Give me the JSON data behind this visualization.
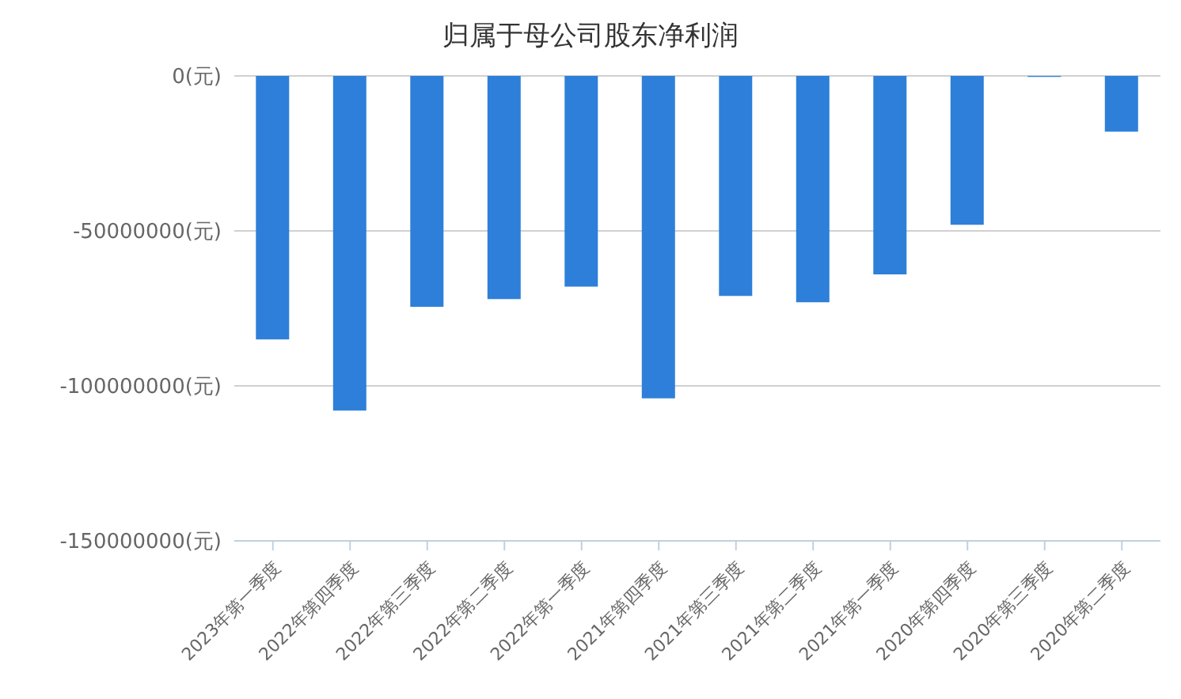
{
  "chart_data": {
    "type": "bar",
    "title": "归属于母公司股东净利润",
    "categories": [
      "2023年第一季度",
      "2022年第四季度",
      "2022年第三季度",
      "2022年第二季度",
      "2022年第一季度",
      "2021年第四季度",
      "2021年第三季度",
      "2021年第二季度",
      "2021年第一季度",
      "2020年第四季度",
      "2020年第三季度",
      "2020年第二季度"
    ],
    "values": [
      -85000000,
      -108000000,
      -74500000,
      -72000000,
      -68000000,
      -104000000,
      -71000000,
      -73000000,
      -64000000,
      -48000000,
      -300000,
      -18000000
    ],
    "color": "#2e7fd9",
    "ylim": [
      -150000000,
      0
    ],
    "yticks": [
      {
        "value": -150000000,
        "label": "-150000000(元)"
      },
      {
        "value": -100000000,
        "label": "-100000000(元)"
      },
      {
        "value": -50000000,
        "label": "-50000000(元)"
      },
      {
        "value": 0,
        "label": "0(元)"
      }
    ],
    "grid": "y"
  }
}
